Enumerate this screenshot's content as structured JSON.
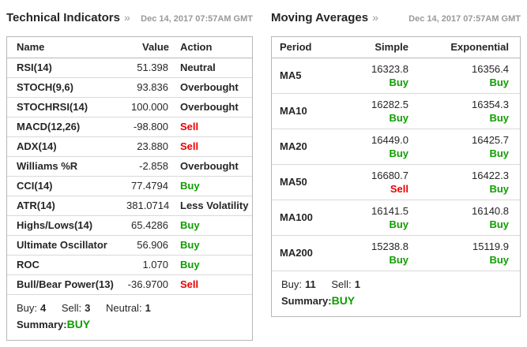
{
  "colors": {
    "buy": "#0f9e00",
    "sell": "#ee0000",
    "text": "#262626",
    "muted": "#999999",
    "border": "#b7b7b7",
    "row_border": "#d9d9d9"
  },
  "technical_indicators": {
    "title": "Technical Indicators",
    "chevron": "»",
    "timestamp": "Dec 14, 2017 07:57AM GMT",
    "columns": [
      "Name",
      "Value",
      "Action"
    ],
    "rows": [
      {
        "name": "RSI(14)",
        "value": "51.398",
        "action": "Neutral",
        "action_type": "neutral"
      },
      {
        "name": "STOCH(9,6)",
        "value": "93.836",
        "action": "Overbought",
        "action_type": "neutral"
      },
      {
        "name": "STOCHRSI(14)",
        "value": "100.000",
        "action": "Overbought",
        "action_type": "neutral"
      },
      {
        "name": "MACD(12,26)",
        "value": "-98.800",
        "action": "Sell",
        "action_type": "sell"
      },
      {
        "name": "ADX(14)",
        "value": "23.880",
        "action": "Sell",
        "action_type": "sell"
      },
      {
        "name": "Williams %R",
        "value": "-2.858",
        "action": "Overbought",
        "action_type": "neutral"
      },
      {
        "name": "CCI(14)",
        "value": "77.4794",
        "action": "Buy",
        "action_type": "buy"
      },
      {
        "name": "ATR(14)",
        "value": "381.0714",
        "action": "Less Volatility",
        "action_type": "neutral"
      },
      {
        "name": "Highs/Lows(14)",
        "value": "65.4286",
        "action": "Buy",
        "action_type": "buy"
      },
      {
        "name": "Ultimate Oscillator",
        "value": "56.906",
        "action": "Buy",
        "action_type": "buy"
      },
      {
        "name": "ROC",
        "value": "1.070",
        "action": "Buy",
        "action_type": "buy"
      },
      {
        "name": "Bull/Bear Power(13)",
        "value": "-36.9700",
        "action": "Sell",
        "action_type": "sell"
      }
    ],
    "summary": {
      "counts": [
        {
          "label": "Buy:",
          "count": "4"
        },
        {
          "label": "Sell:",
          "count": "3"
        },
        {
          "label": "Neutral:",
          "count": "1"
        }
      ],
      "summary_label": "Summary:",
      "summary_value": "BUY"
    }
  },
  "moving_averages": {
    "title": "Moving Averages",
    "chevron": "»",
    "timestamp": "Dec 14, 2017 07:57AM GMT",
    "columns": [
      "Period",
      "Simple",
      "Exponential"
    ],
    "rows": [
      {
        "period": "MA5",
        "simple_value": "16323.8",
        "simple_action": "Buy",
        "simple_type": "buy",
        "exp_value": "16356.4",
        "exp_action": "Buy",
        "exp_type": "buy"
      },
      {
        "period": "MA10",
        "simple_value": "16282.5",
        "simple_action": "Buy",
        "simple_type": "buy",
        "exp_value": "16354.3",
        "exp_action": "Buy",
        "exp_type": "buy"
      },
      {
        "period": "MA20",
        "simple_value": "16449.0",
        "simple_action": "Buy",
        "simple_type": "buy",
        "exp_value": "16425.7",
        "exp_action": "Buy",
        "exp_type": "buy"
      },
      {
        "period": "MA50",
        "simple_value": "16680.7",
        "simple_action": "Sell",
        "simple_type": "sell",
        "exp_value": "16422.3",
        "exp_action": "Buy",
        "exp_type": "buy"
      },
      {
        "period": "MA100",
        "simple_value": "16141.5",
        "simple_action": "Buy",
        "simple_type": "buy",
        "exp_value": "16140.8",
        "exp_action": "Buy",
        "exp_type": "buy"
      },
      {
        "period": "MA200",
        "simple_value": "15238.8",
        "simple_action": "Buy",
        "simple_type": "buy",
        "exp_value": "15119.9",
        "exp_action": "Buy",
        "exp_type": "buy"
      }
    ],
    "summary": {
      "counts": [
        {
          "label": "Buy:",
          "count": "11"
        },
        {
          "label": "Sell:",
          "count": "1"
        }
      ],
      "summary_label": "Summary:",
      "summary_value": "BUY"
    }
  }
}
